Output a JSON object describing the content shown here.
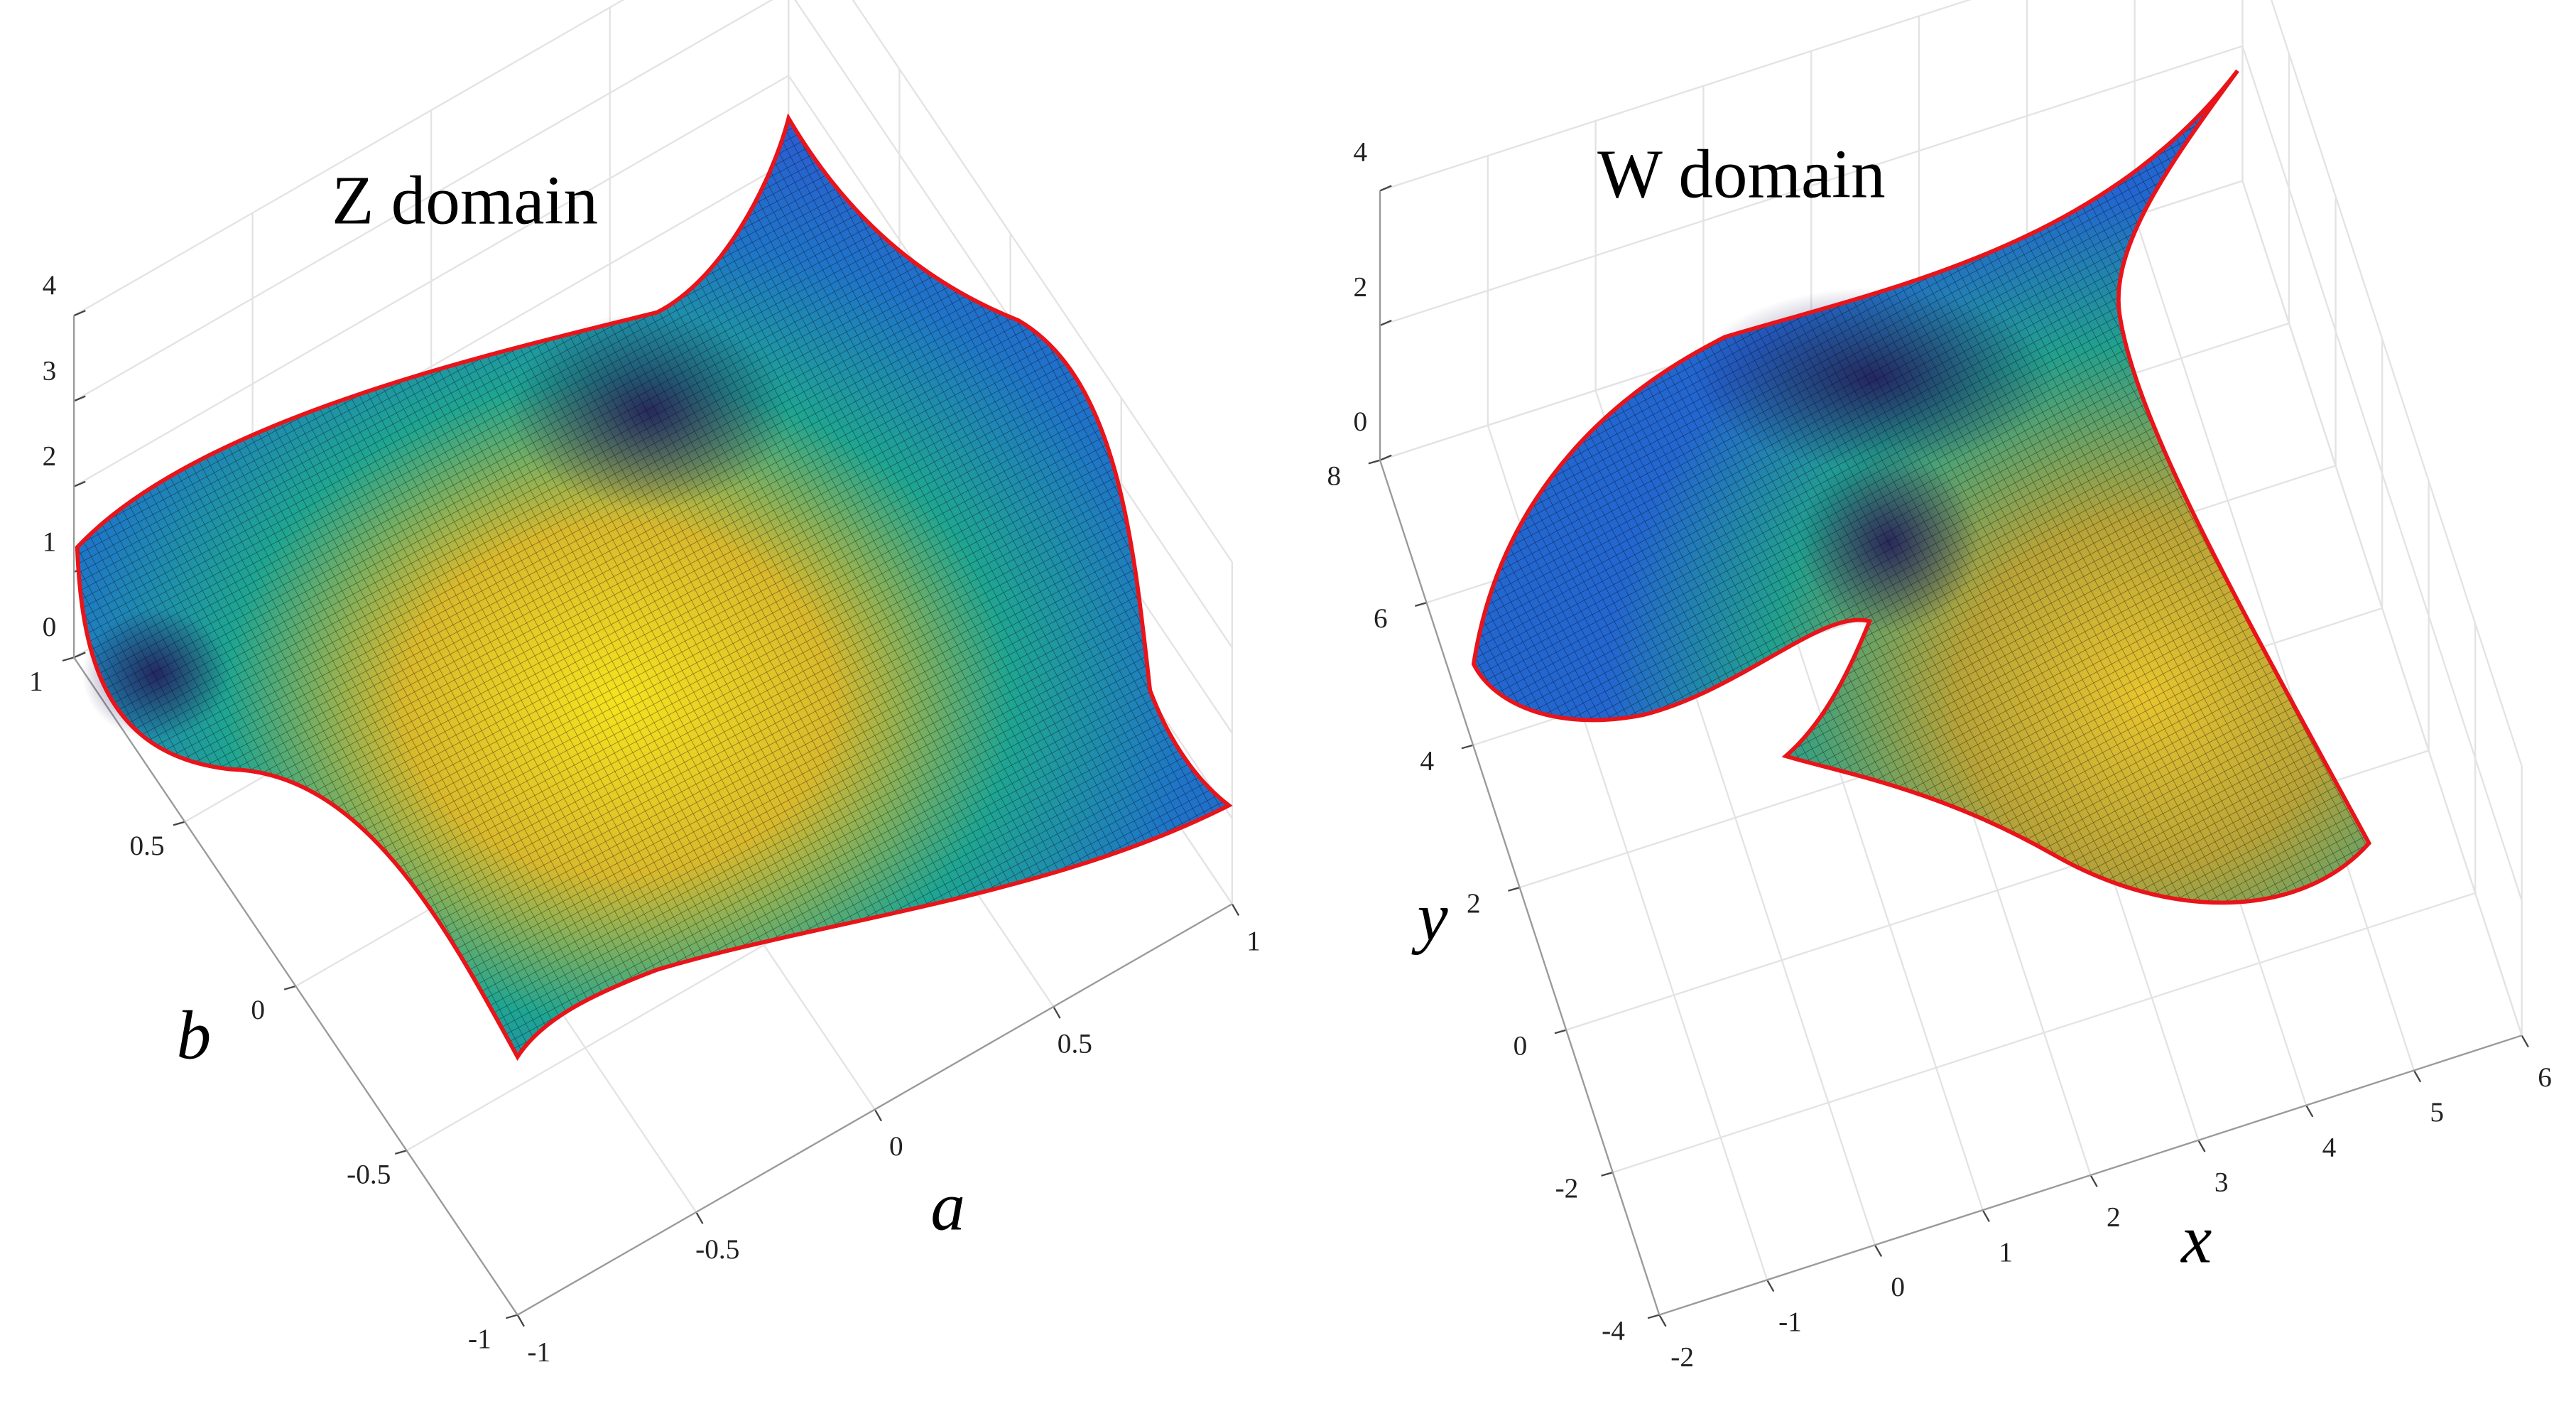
{
  "chart_data": [
    {
      "type": "surface",
      "title": "Z domain",
      "xlabel": "a",
      "ylabel": "b",
      "xlim": [
        -1,
        1
      ],
      "ylim": [
        -1,
        1
      ],
      "zlim": [
        0,
        4
      ],
      "xticks": [
        -1,
        -0.5,
        0,
        0.5,
        1
      ],
      "yticks": [
        -1,
        -0.5,
        0,
        0.5,
        1
      ],
      "zticks": [
        0,
        1,
        2,
        3,
        4
      ],
      "grid": true,
      "edge_color": "#e8141a"
    },
    {
      "type": "surface",
      "title": "W domain",
      "xlabel": "x",
      "ylabel": "y",
      "xlim": [
        -2,
        6
      ],
      "ylim": [
        -4,
        8
      ],
      "zlim": [
        0,
        4
      ],
      "xticks": [
        -2,
        -1,
        0,
        1,
        2,
        3,
        4,
        5,
        6
      ],
      "yticks": [
        -4,
        -2,
        0,
        2,
        4,
        6,
        8
      ],
      "zticks": [
        0,
        2,
        4
      ],
      "grid": true,
      "edge_color": "#e8141a"
    }
  ]
}
